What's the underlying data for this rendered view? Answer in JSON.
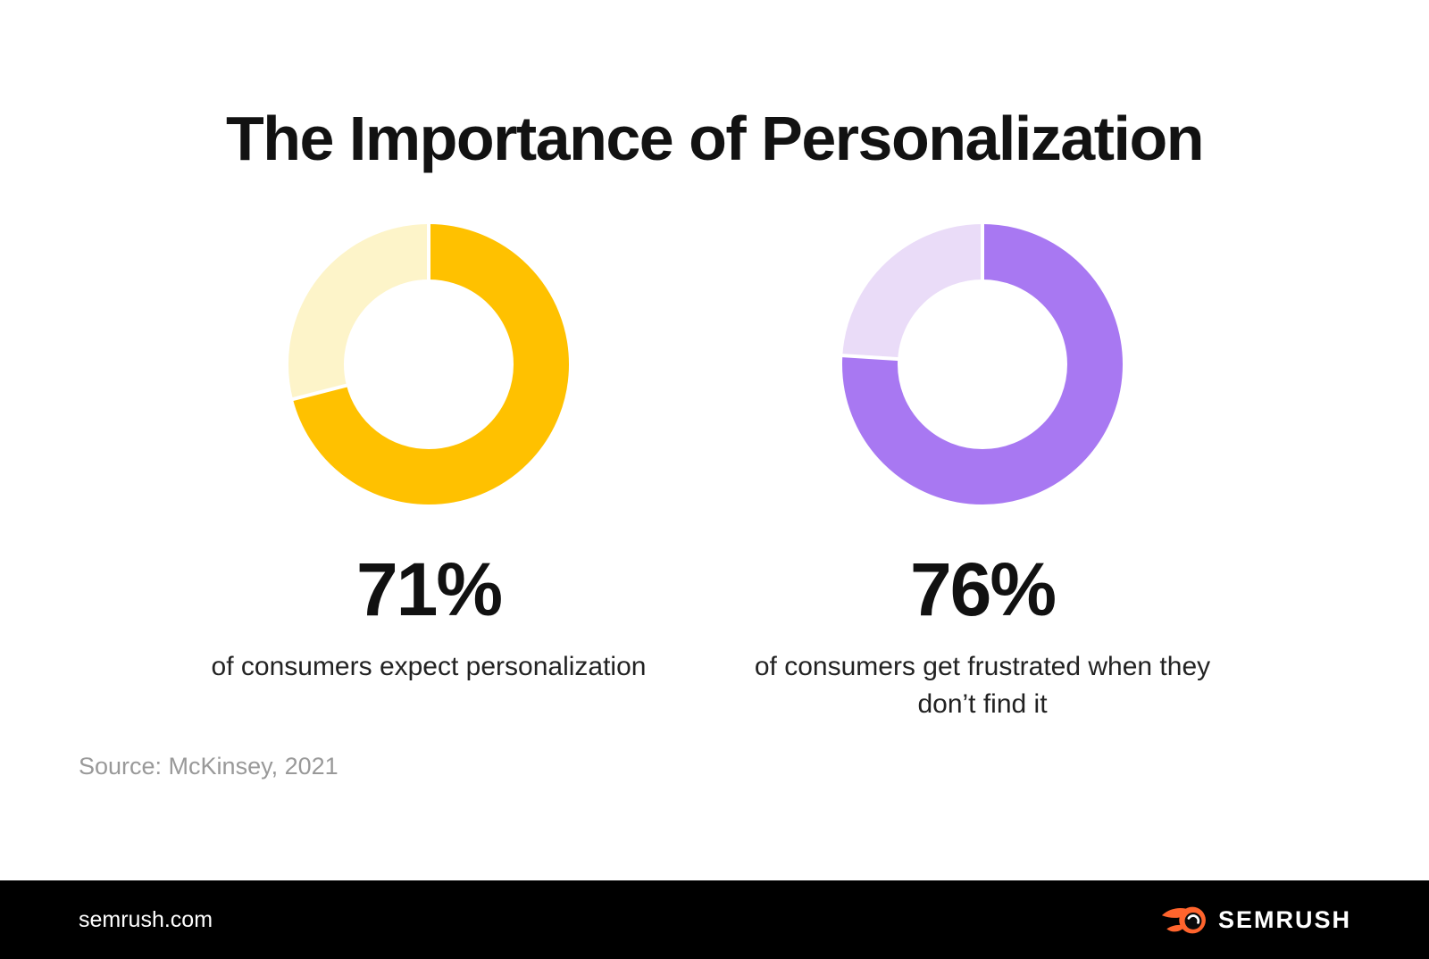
{
  "title": "The Importance of Personalization",
  "source_note": "Source: McKinsey, 2021",
  "colors": {
    "yellow": "#FFC100",
    "yellow_light": "#FDF4C9",
    "purple": "#A878F2",
    "purple_light": "#EADCF8",
    "gap_line": "#FFFFFF",
    "footer_background": "#000000",
    "logo_orange": "#FF642D",
    "text_dark": "#111111",
    "text_gray": "#999999"
  },
  "chart_data": [
    {
      "type": "donut",
      "value_label": "71%",
      "caption": "of consumers expect personalization",
      "start_angle_deg": 0,
      "direction": "clockwise",
      "donut_hole": true,
      "segments": [
        {
          "name": "consumers who expect personalization",
          "value": 71,
          "color": "#FFC100"
        },
        {
          "name": "remainder",
          "value": 29,
          "color": "#FDF4C9"
        }
      ]
    },
    {
      "type": "donut",
      "value_label": "76%",
      "caption": "of consumers get frustrated when they don’t find it",
      "start_angle_deg": 0,
      "direction": "clockwise",
      "donut_hole": true,
      "segments": [
        {
          "name": "consumers who get frustrated when they don’t find personalization",
          "value": 76,
          "color": "#A878F2"
        },
        {
          "name": "remainder",
          "value": 24,
          "color": "#EADCF8"
        }
      ]
    }
  ],
  "footer": {
    "site_url": "semrush.com",
    "brand_name": "SEMRUSH",
    "logo_icon": "semrush-fireball-icon"
  }
}
